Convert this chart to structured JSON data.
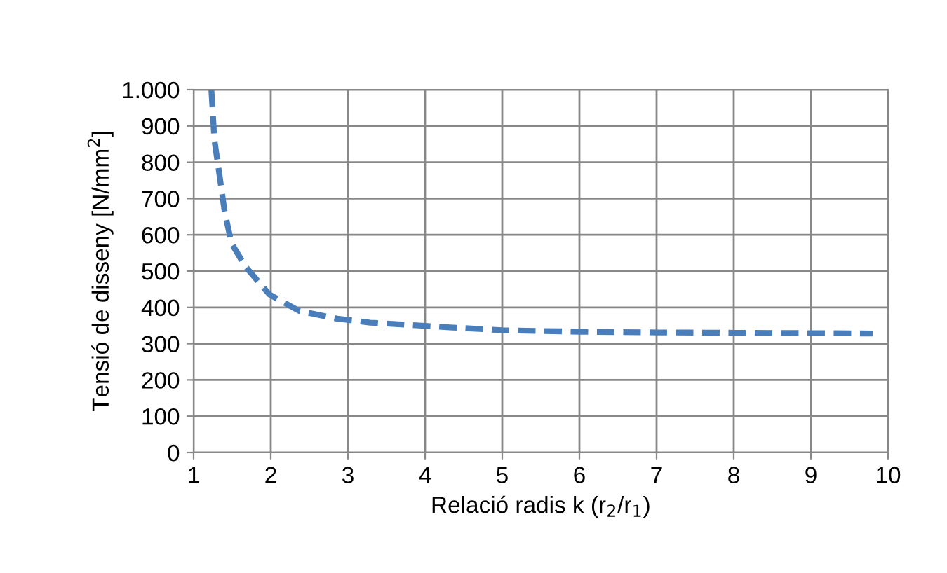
{
  "chart_data": {
    "type": "line",
    "xlabel": "Relació radis k (r$_{2}$/r$_{1}$)",
    "ylabel": "Tensió de disseny [N/mm$^{2}$]",
    "series": [
      {
        "color": "#4a7ebb",
        "line_style": "dashed",
        "x": [
          1.23,
          1.27,
          1.34,
          1.4,
          1.49,
          1.67,
          1.98,
          2.37,
          2.86,
          3.29,
          4.32,
          5,
          6,
          7,
          8,
          9,
          9.8
        ],
        "values": [
          1000,
          861,
          758,
          667,
          577,
          513,
          436,
          390,
          369,
          358,
          345,
          337,
          333,
          331,
          330,
          329,
          328
        ]
      }
    ],
    "xlim": [
      1,
      10
    ],
    "xticks": [
      1,
      2,
      3,
      4,
      5,
      6,
      7,
      8,
      9,
      10
    ],
    "ylim": [
      0,
      1000
    ],
    "yticks": [
      0,
      100,
      200,
      300,
      400,
      500,
      600,
      700,
      800,
      900,
      {
        "value": 1000,
        "label": "1.000"
      }
    ],
    "grid": true,
    "legend": false,
    "marker": "none"
  }
}
